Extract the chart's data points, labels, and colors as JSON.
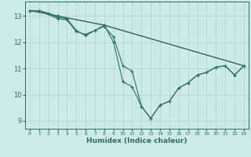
{
  "xlabel": "Humidex (Indice chaleur)",
  "ylabel": "",
  "bg_color": "#cceae6",
  "line_color": "#2e6e65",
  "grid_color": "#add5d0",
  "xlim": [
    -0.5,
    23.5
  ],
  "ylim": [
    8.7,
    13.55
  ],
  "yticks": [
    9,
    10,
    11,
    12,
    13
  ],
  "xticks": [
    0,
    1,
    2,
    3,
    4,
    5,
    6,
    7,
    8,
    9,
    10,
    11,
    12,
    13,
    14,
    15,
    16,
    17,
    18,
    19,
    20,
    21,
    22,
    23
  ],
  "series": [
    {
      "x": [
        0,
        1,
        3,
        4,
        5,
        6,
        7,
        8,
        9,
        10,
        11,
        12,
        13,
        14,
        15,
        16,
        17,
        18,
        19,
        20,
        21,
        22,
        23
      ],
      "y": [
        13.2,
        13.2,
        12.9,
        12.85,
        12.4,
        12.3,
        12.45,
        12.65,
        12.0,
        10.5,
        10.3,
        9.55,
        9.1,
        9.6,
        9.75,
        10.25,
        10.45,
        10.75,
        10.85,
        11.05,
        11.1,
        10.75,
        11.1
      ]
    },
    {
      "x": [
        0,
        1,
        2,
        3,
        4,
        5,
        6,
        7,
        8,
        9,
        10,
        11,
        12,
        13,
        14,
        15,
        16,
        17,
        18,
        19,
        20,
        21,
        22,
        23
      ],
      "y": [
        13.2,
        13.2,
        13.1,
        12.95,
        12.9,
        12.45,
        12.25,
        12.45,
        12.6,
        12.2,
        11.1,
        10.9,
        9.55,
        9.1,
        9.6,
        9.75,
        10.25,
        10.45,
        10.75,
        10.85,
        11.05,
        11.1,
        10.75,
        11.1
      ]
    },
    {
      "x": [
        0,
        1,
        3,
        8,
        23
      ],
      "y": [
        13.2,
        13.2,
        13.0,
        12.65,
        11.1
      ]
    },
    {
      "x": [
        0,
        3,
        8,
        23
      ],
      "y": [
        13.2,
        13.0,
        12.65,
        11.1
      ]
    }
  ],
  "xlabel_fontsize": 6.5,
  "xtick_fontsize": 4.5,
  "ytick_fontsize": 6.0,
  "linewidth": 0.8,
  "markersize": 3.0,
  "marker_ew": 0.8
}
